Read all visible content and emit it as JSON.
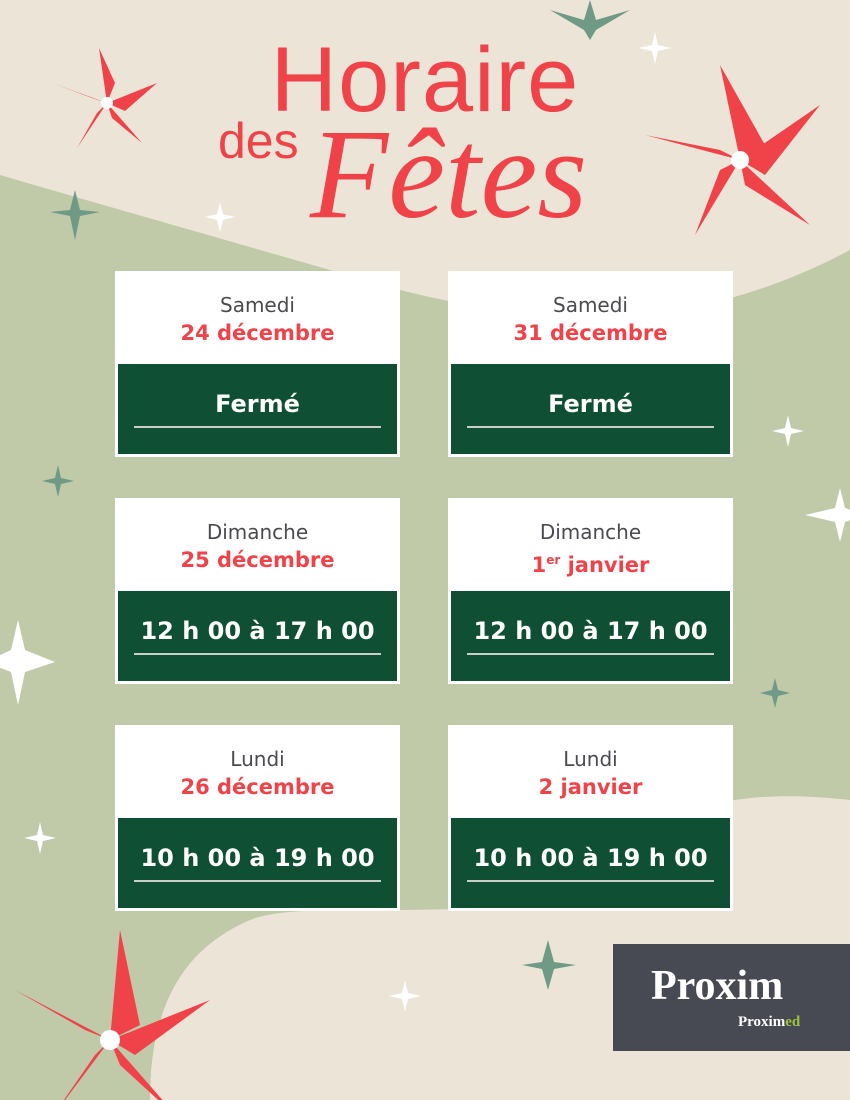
{
  "title": {
    "line1": "Horaire",
    "line2": "des",
    "line3": "Fêtes"
  },
  "colors": {
    "accent_red": "#ef4349",
    "dark_green": "#0f4f33",
    "sage": "#c0c9a8",
    "beige": "#ece5d7",
    "logo_bg": "#474a53",
    "logo_green": "#9bc43c"
  },
  "cards": [
    {
      "day": "Samedi",
      "date": "24 décembre",
      "hours": "Fermé"
    },
    {
      "day": "Samedi",
      "date": "31 décembre",
      "hours": "Fermé"
    },
    {
      "day": "Dimanche",
      "date": "25 décembre",
      "hours": "12 h 00 à 17 h 00"
    },
    {
      "day": "Dimanche",
      "date_num": "1",
      "date_sup": "er",
      "date_rest": " janvier",
      "hours": "12 h 00 à 17 h 00"
    },
    {
      "day": "Lundi",
      "date": "26 décembre",
      "hours": "10 h 00 à 19 h 00"
    },
    {
      "day": "Lundi",
      "date": "2 janvier",
      "hours": "10 h 00 à 19 h 00"
    }
  ],
  "logo": {
    "main": "Proxim",
    "sub_a": "Proxim",
    "sub_b": "ed"
  }
}
